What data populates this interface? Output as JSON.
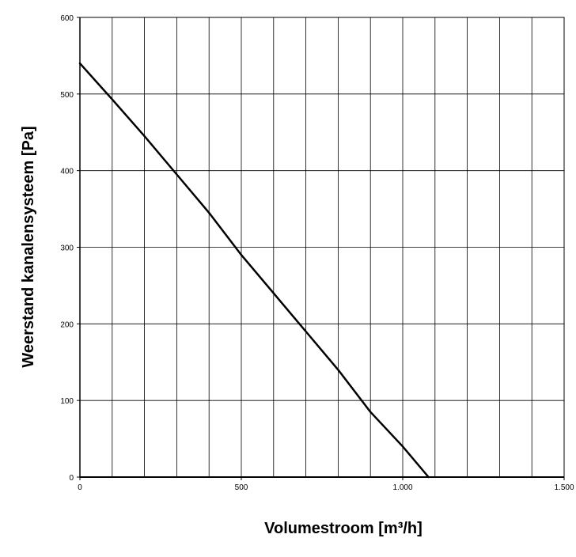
{
  "chart_data": {
    "type": "line",
    "title": "",
    "xlabel": "Volumestroom [m³/h]",
    "ylabel": "Weerstand kanalensysteem [Pa]",
    "xlim": [
      0,
      1500
    ],
    "ylim": [
      0,
      600
    ],
    "grid": true,
    "x_ticks": [
      {
        "value": 0,
        "label": "0"
      },
      {
        "value": 500,
        "label": "500"
      },
      {
        "value": 1000,
        "label": "1.000"
      },
      {
        "value": 1500,
        "label": "1.500"
      }
    ],
    "y_ticks": [
      {
        "value": 0,
        "label": "0"
      },
      {
        "value": 100,
        "label": "100"
      },
      {
        "value": 200,
        "label": "200"
      },
      {
        "value": 300,
        "label": "300"
      },
      {
        "value": 400,
        "label": "400"
      },
      {
        "value": 500,
        "label": "500"
      },
      {
        "value": 600,
        "label": "600"
      }
    ],
    "x_grid_step": 100,
    "y_grid_step": 100,
    "series": [
      {
        "color": "#000000",
        "x": [
          0,
          100,
          200,
          300,
          400,
          500,
          600,
          700,
          800,
          900,
          1000,
          1080
        ],
        "y": [
          540,
          493,
          445,
          395,
          345,
          290,
          240,
          190,
          140,
          85,
          40,
          0
        ]
      }
    ]
  }
}
